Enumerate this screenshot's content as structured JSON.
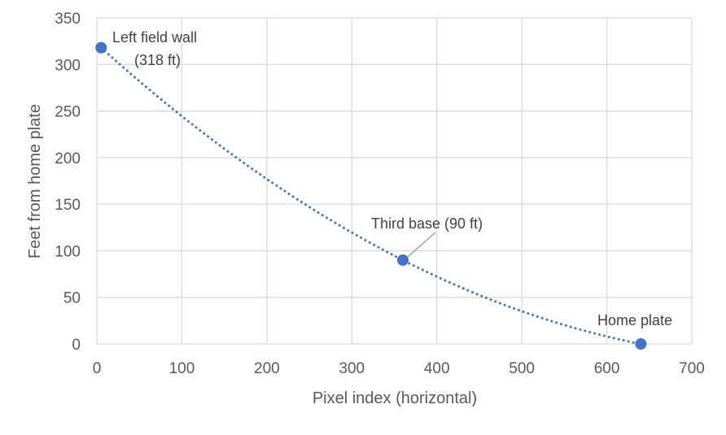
{
  "chart_data": {
    "type": "scatter",
    "xlabel": "Pixel index (horizontal)",
    "ylabel": "Feet from home plate",
    "xlim": [
      0,
      700
    ],
    "ylim": [
      0,
      350
    ],
    "xticks": [
      "0",
      "100",
      "200",
      "300",
      "400",
      "500",
      "600",
      "700"
    ],
    "yticks": [
      "0",
      "50",
      "100",
      "150",
      "200",
      "250",
      "300",
      "350"
    ],
    "grid": true,
    "legend": "none",
    "series": [
      {
        "marker_color": "#4472C4",
        "trendline": "dotted",
        "points": [
          {
            "x": 5,
            "y": 318
          },
          {
            "x": 360,
            "y": 90
          },
          {
            "x": 640,
            "y": 0
          }
        ]
      }
    ],
    "annotations": [
      {
        "lines": [
          "Left field wall",
          "(318 ft)"
        ]
      },
      {
        "lines": [
          "Third base (90 ft)"
        ]
      },
      {
        "lines": [
          "Home plate"
        ]
      }
    ]
  }
}
